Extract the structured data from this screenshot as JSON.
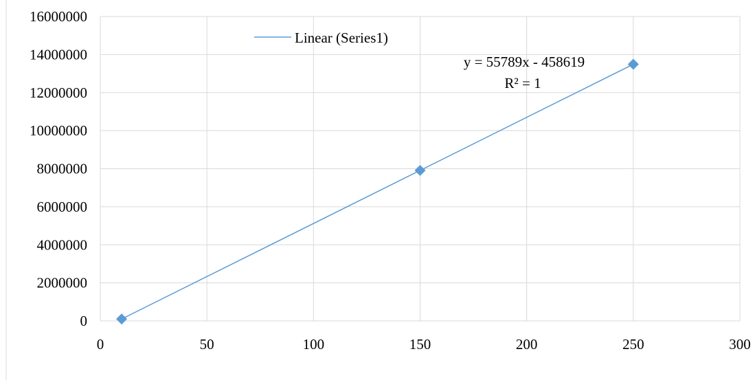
{
  "chart_data": {
    "type": "scatter",
    "title": "",
    "xlabel": "",
    "ylabel": "",
    "xlim": [
      0,
      300
    ],
    "ylim": [
      0,
      16000000
    ],
    "x_ticks": [
      "0",
      "50",
      "100",
      "150",
      "200",
      "250",
      "300"
    ],
    "y_ticks": [
      "0",
      "2000000",
      "4000000",
      "6000000",
      "8000000",
      "10000000",
      "12000000",
      "14000000",
      "16000000"
    ],
    "grid": true,
    "legend_position": "top",
    "series": [
      {
        "x": [
          10,
          150,
          250
        ],
        "y": [
          99271,
          7909731,
          13488631
        ],
        "marker": "diamond",
        "color": "#5B9BD5"
      }
    ],
    "trendline": {
      "type": "linear",
      "legend_label": "Linear (Series1)",
      "slope": 55789,
      "intercept": -458619,
      "x_range": [
        10,
        250
      ],
      "color": "#5B9BD5",
      "equation_label": "y = 55789x - 458619",
      "r2_label": "R² = 1"
    }
  }
}
